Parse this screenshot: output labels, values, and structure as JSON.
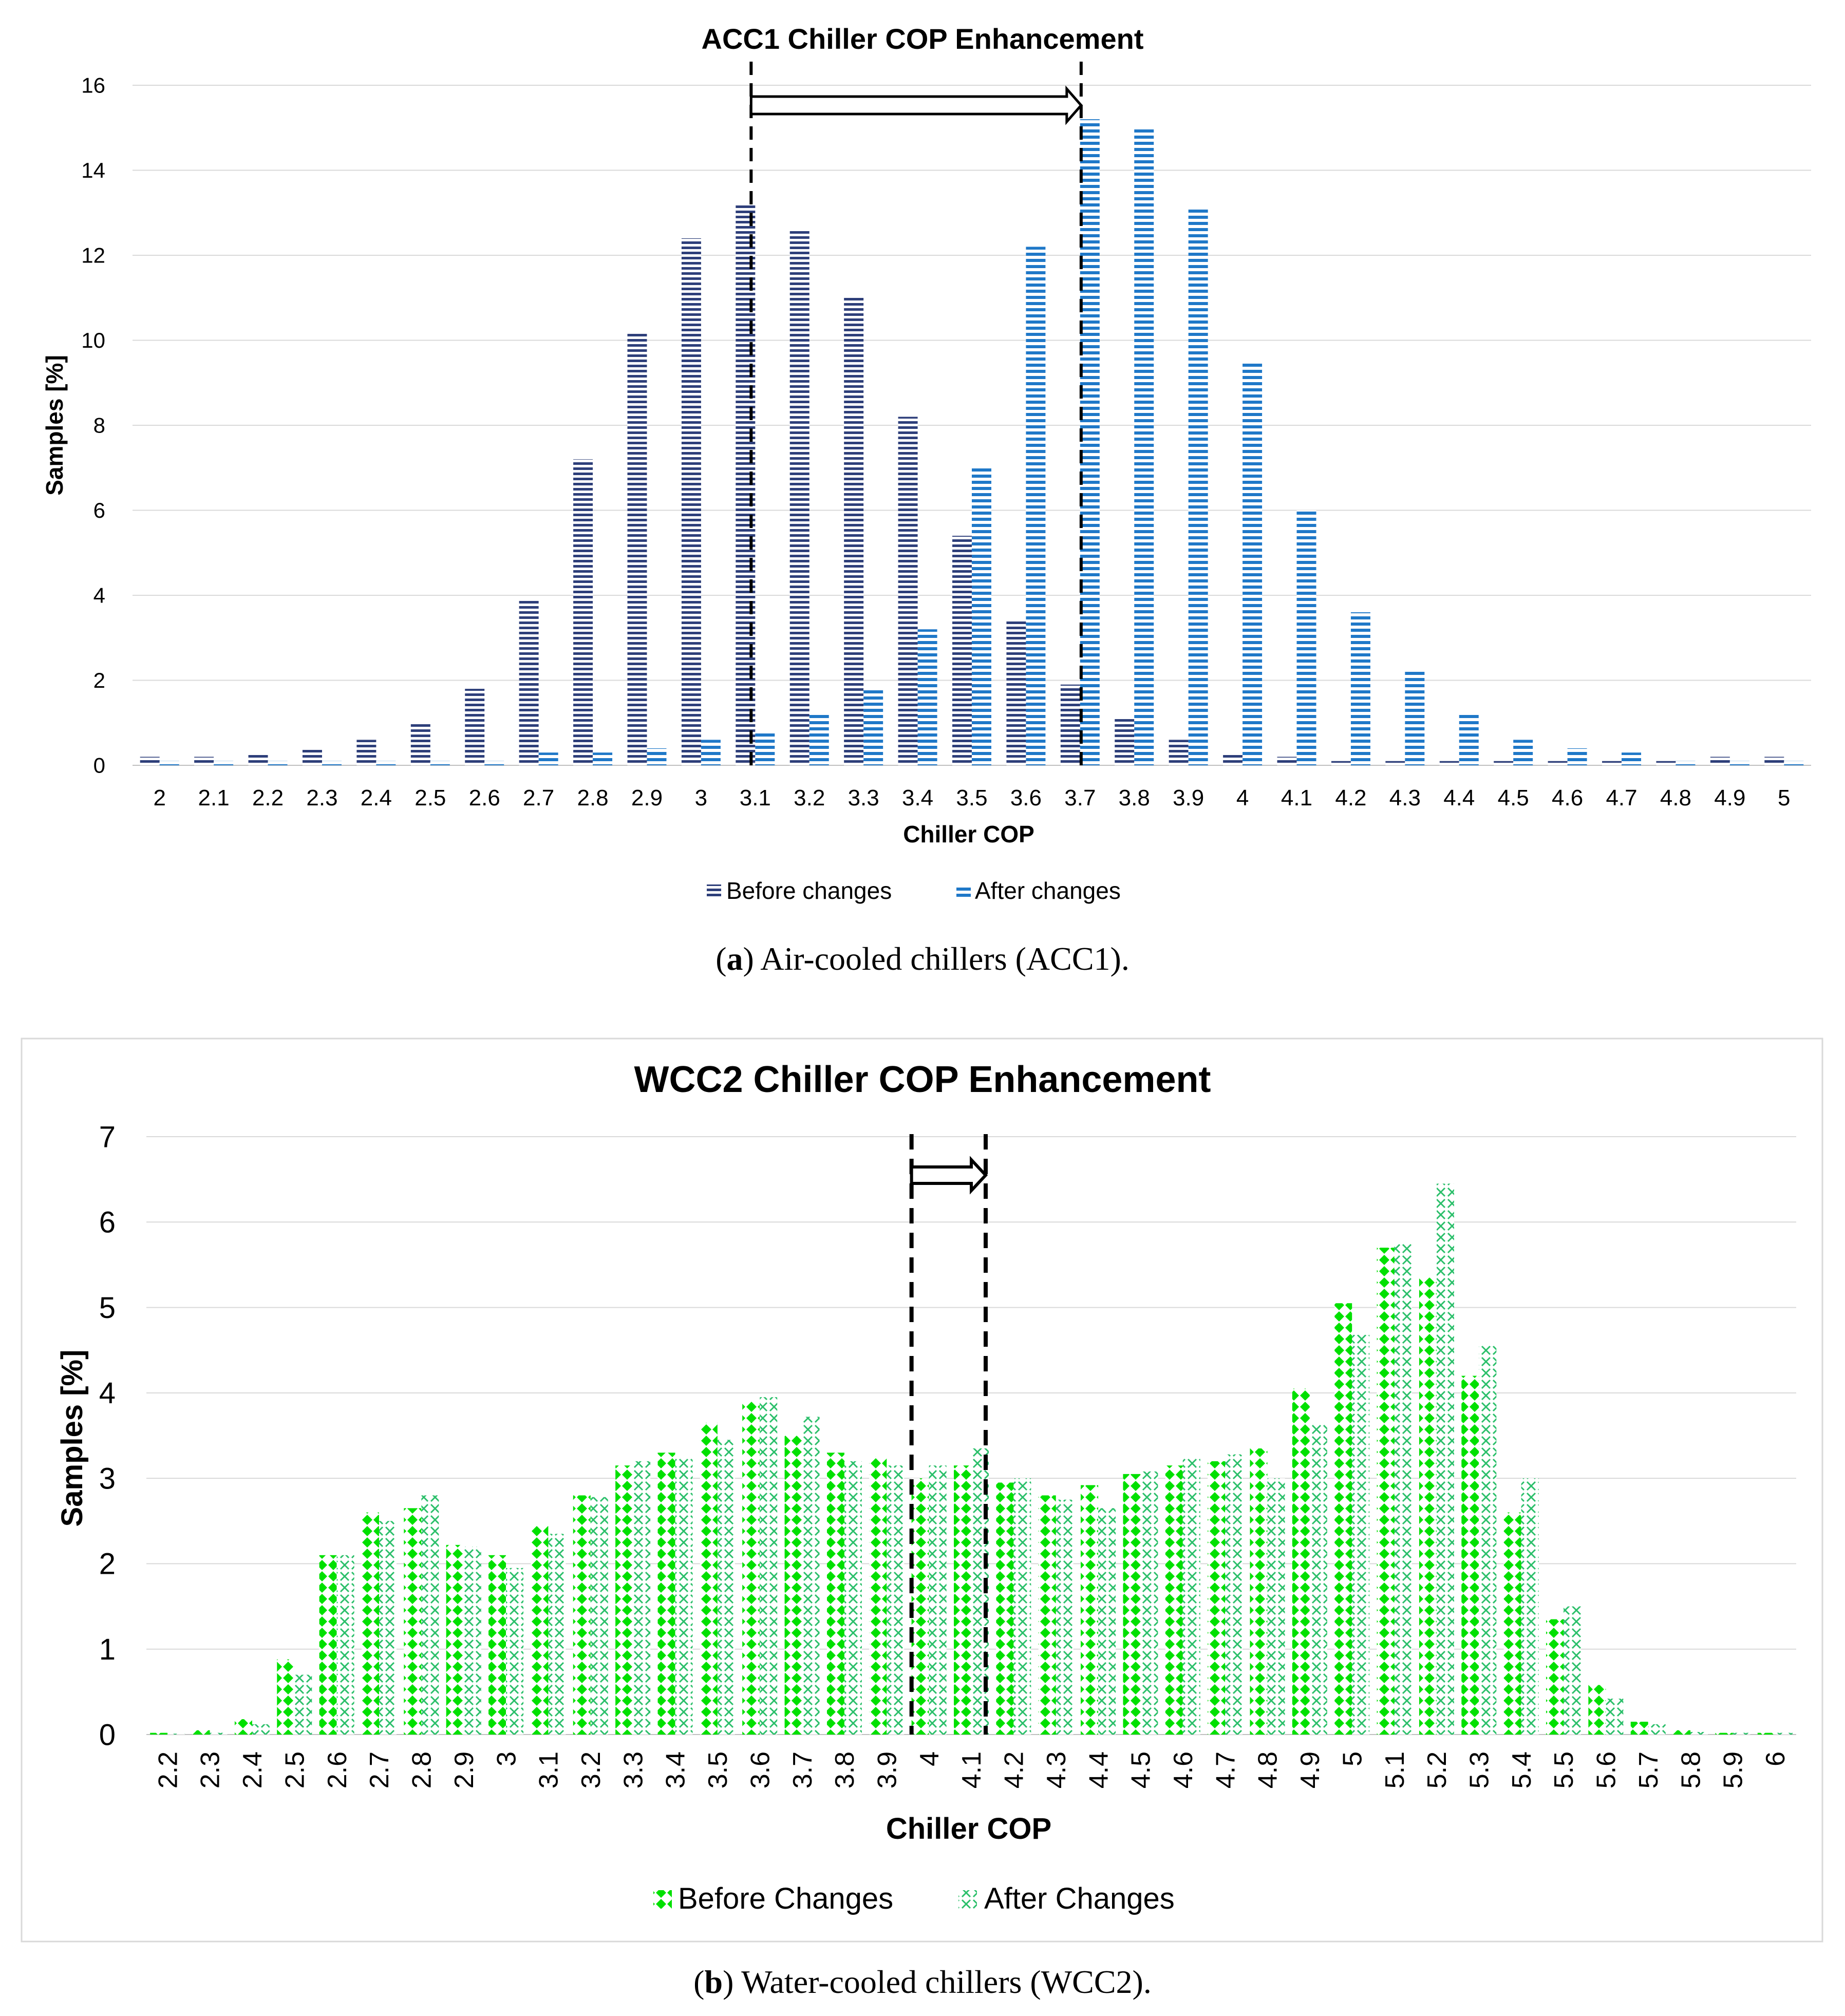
{
  "chart_data": [
    {
      "type": "bar",
      "title": "ACC1 Chiller COP Enhancement",
      "xlabel": "Chiller COP",
      "ylabel": "Samples [%]",
      "ylim": [
        0,
        16
      ],
      "yticks": [
        "0",
        "2",
        "4",
        "6",
        "8",
        "10",
        "12",
        "14",
        "16"
      ],
      "categories": [
        "2",
        "2.1",
        "2.2",
        "2.3",
        "2.4",
        "2.5",
        "2.6",
        "2.7",
        "2.8",
        "2.9",
        "3",
        "3.1",
        "3.2",
        "3.3",
        "3.4",
        "3.5",
        "3.6",
        "3.7",
        "3.8",
        "3.9",
        "4",
        "4.1",
        "4.2",
        "4.3",
        "4.4",
        "4.5",
        "4.6",
        "4.7",
        "4.8",
        "4.9",
        "5"
      ],
      "series": [
        {
          "name": "Before changes",
          "color": "#2e3f7a",
          "values": [
            0.2,
            0.2,
            0.3,
            0.4,
            0.6,
            1.0,
            1.8,
            3.9,
            7.2,
            10.2,
            12.4,
            13.2,
            12.6,
            11.0,
            8.2,
            5.4,
            3.4,
            1.9,
            1.1,
            0.6,
            0.3,
            0.2,
            0.1,
            0.1,
            0.1,
            0.1,
            0.1,
            0.1,
            0.1,
            0.2,
            0.2
          ]
        },
        {
          "name": "After changes",
          "color": "#1f78c8",
          "values": [
            0.1,
            0.1,
            0.1,
            0.1,
            0.1,
            0.1,
            0.1,
            0.3,
            0.3,
            0.4,
            0.6,
            0.8,
            1.2,
            1.8,
            3.2,
            7.0,
            12.2,
            15.2,
            15.0,
            13.1,
            9.5,
            6.0,
            3.6,
            2.2,
            1.2,
            0.6,
            0.4,
            0.3,
            0.1,
            0.1,
            0.1
          ]
        }
      ],
      "annotations": {
        "shift_from": 3.1,
        "shift_to": 3.7
      },
      "caption": {
        "letter": "a",
        "text": " Air-cooled chillers (ACC1)."
      }
    },
    {
      "type": "bar",
      "title": "WCC2 Chiller COP Enhancement",
      "xlabel": "Chiller COP",
      "ylabel": "Samples [%]",
      "ylim": [
        0,
        7
      ],
      "yticks": [
        "0",
        "1",
        "2",
        "3",
        "4",
        "5",
        "6",
        "7"
      ],
      "categories": [
        "2.2",
        "2.3",
        "2.4",
        "2.5",
        "2.6",
        "2.7",
        "2.8",
        "2.9",
        "3",
        "3.1",
        "3.2",
        "3.3",
        "3.4",
        "3.5",
        "3.6",
        "3.7",
        "3.8",
        "3.9",
        "4",
        "4.1",
        "4.2",
        "4.3",
        "4.4",
        "4.5",
        "4.6",
        "4.7",
        "4.8",
        "4.9",
        "5",
        "5.1",
        "5.2",
        "5.3",
        "5.4",
        "5.5",
        "5.6",
        "5.7",
        "5.8",
        "5.9",
        "6"
      ],
      "series": [
        {
          "name": "Before Changes",
          "color": "#00e000",
          "values": [
            0.02,
            0.05,
            0.18,
            0.88,
            2.1,
            2.6,
            2.65,
            2.22,
            2.1,
            2.45,
            2.8,
            3.15,
            3.3,
            3.65,
            3.9,
            3.5,
            3.3,
            3.25,
            3.0,
            3.15,
            2.95,
            2.8,
            2.92,
            3.05,
            3.15,
            3.2,
            3.35,
            4.05,
            5.05,
            5.7,
            5.35,
            4.2,
            2.6,
            1.35,
            0.58,
            0.15,
            0.05,
            0.02,
            0.02
          ]
        },
        {
          "name": "After Changes",
          "color": "#2bbf6a",
          "values": [
            0.01,
            0.02,
            0.12,
            0.7,
            2.1,
            2.5,
            2.8,
            2.2,
            1.95,
            2.35,
            2.78,
            3.2,
            3.25,
            3.45,
            3.95,
            3.72,
            3.2,
            3.15,
            3.15,
            3.35,
            3.0,
            2.75,
            2.65,
            3.08,
            3.25,
            3.28,
            3.0,
            3.65,
            4.68,
            5.75,
            6.45,
            4.55,
            3.0,
            1.5,
            0.42,
            0.12,
            0.03,
            0.02,
            0.02
          ]
        }
      ],
      "annotations": {
        "shift_from": 4.0,
        "shift_to": 4.1
      },
      "caption": {
        "letter": "b",
        "text": " Water-cooled chillers (WCC2)."
      }
    }
  ]
}
